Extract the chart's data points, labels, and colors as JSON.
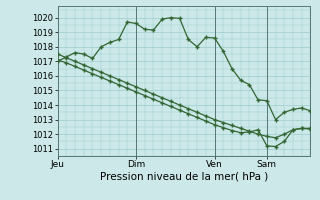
{
  "background_color": "#cce8e8",
  "grid_color": "#99cccc",
  "line_color": "#336633",
  "xlabel": "Pression niveau de la mer( hPa )",
  "ylim": [
    1010.5,
    1020.8
  ],
  "yticks": [
    1011,
    1012,
    1013,
    1014,
    1015,
    1016,
    1017,
    1018,
    1019,
    1020
  ],
  "xtick_labels": [
    "Jeu",
    "Dim",
    "Ven",
    "Sam"
  ],
  "xtick_positions": [
    0,
    9,
    18,
    24
  ],
  "vline_positions": [
    9,
    18,
    24
  ],
  "total_points": 30,
  "series1": [
    1017.0,
    1017.3,
    1017.6,
    1017.5,
    1017.2,
    1018.0,
    1018.3,
    1018.5,
    1019.7,
    1019.6,
    1019.2,
    1019.15,
    1019.9,
    1020.0,
    1019.95,
    1018.5,
    1018.0,
    1018.65,
    1018.6,
    1017.7,
    1016.5,
    1015.7,
    1015.4,
    1014.35,
    1014.3,
    1013.0,
    1013.5,
    1013.7,
    1013.8,
    1013.6
  ],
  "series2": [
    1017.1,
    1016.9,
    1016.65,
    1016.4,
    1016.15,
    1015.9,
    1015.65,
    1015.4,
    1015.15,
    1014.9,
    1014.65,
    1014.4,
    1014.15,
    1013.9,
    1013.65,
    1013.4,
    1013.15,
    1012.9,
    1012.65,
    1012.45,
    1012.25,
    1012.1,
    1012.15,
    1012.3,
    1011.2,
    1011.15,
    1011.5,
    1012.3,
    1012.4,
    1012.4
  ],
  "series3": [
    1017.5,
    1017.25,
    1017.0,
    1016.75,
    1016.5,
    1016.25,
    1016.0,
    1015.75,
    1015.5,
    1015.25,
    1015.0,
    1014.75,
    1014.5,
    1014.25,
    1014.0,
    1013.75,
    1013.5,
    1013.25,
    1013.0,
    1012.8,
    1012.6,
    1012.4,
    1012.2,
    1012.0,
    1011.85,
    1011.75,
    1012.0,
    1012.3,
    1012.4,
    1012.35
  ]
}
